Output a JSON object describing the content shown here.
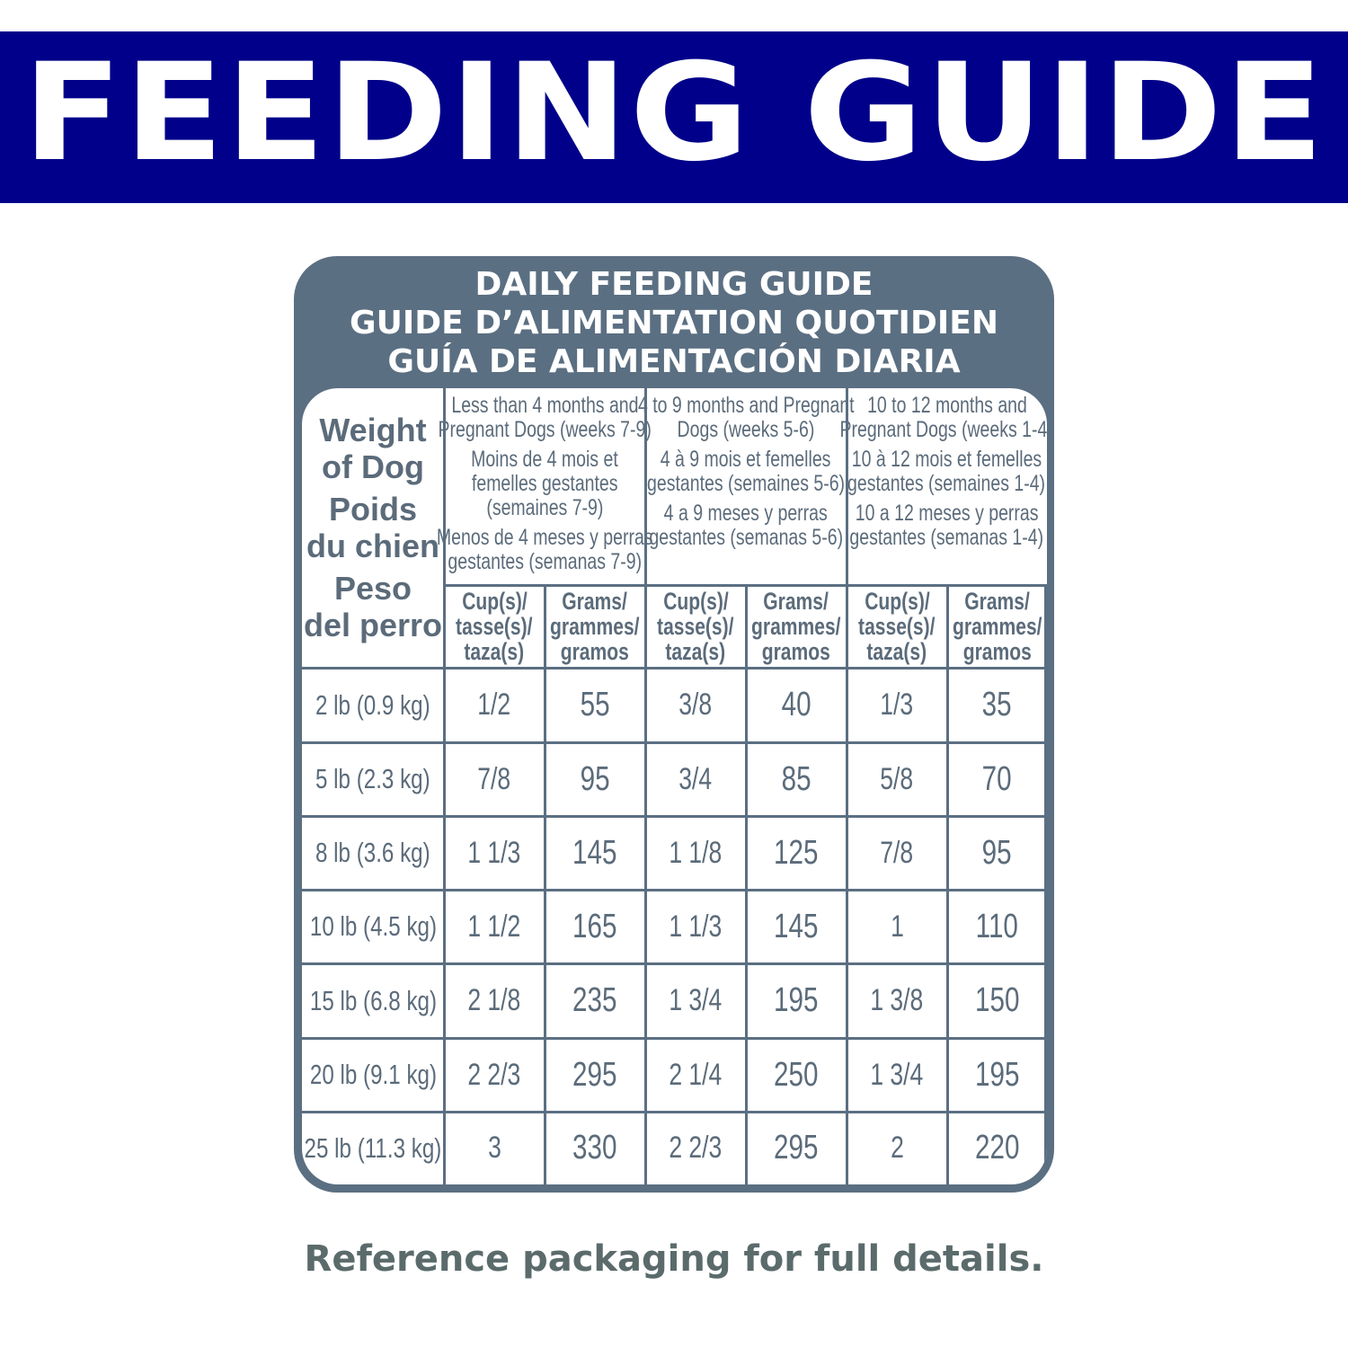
{
  "banner": {
    "title": "FEEDING GUIDE",
    "color": "#00008a"
  },
  "table": {
    "color": "#5b6f82",
    "title_lines": [
      "DAILY FEEDING GUIDE",
      "GUIDE D’ALIMENTATION QUOTIDIEN",
      "GUÍA DE ALIMENTACIÓN DIARIA"
    ],
    "weight_header": [
      "Weight",
      "of Dog",
      "Poids",
      "du chien",
      "Peso",
      "del perro"
    ],
    "age_groups": [
      {
        "en": [
          "Less than 4 months and",
          "Pregnant Dogs (weeks 7-9)"
        ],
        "fr": [
          "Moins de 4 mois et",
          "femelles gestantes",
          "(semaines 7-9)"
        ],
        "es": [
          "Menos de 4 meses y perras",
          "gestantes (semanas 7-9)"
        ]
      },
      {
        "en": [
          "4 to 9 months and Pregnant",
          "Dogs (weeks 5-6)"
        ],
        "fr": [
          "4 à 9 mois et femelles",
          "gestantes (semaines 5-6)"
        ],
        "es": [
          "4 a 9 meses y perras",
          "gestantes (semanas 5-6)"
        ]
      },
      {
        "en": [
          "10 to 12 months and",
          "Pregnant Dogs (weeks 1-4)"
        ],
        "fr": [
          "10 à 12 mois et femelles",
          "gestantes (semaines 1-4)"
        ],
        "es": [
          "10 a 12 meses y perras",
          "gestantes (semanas 1-4)"
        ]
      }
    ],
    "unit_headers": {
      "cups": [
        "Cup(s)/",
        "tasse(s)/",
        "taza(s)"
      ],
      "grams": [
        "Grams/",
        "grammes/",
        "gramos"
      ]
    },
    "rows": [
      {
        "weight": "2 lb (0.9 kg)",
        "values": [
          "1/2",
          "55",
          "3/8",
          "40",
          "1/3",
          "35"
        ]
      },
      {
        "weight": "5 lb (2.3 kg)",
        "values": [
          "7/8",
          "95",
          "3/4",
          "85",
          "5/8",
          "70"
        ]
      },
      {
        "weight": "8 lb (3.6 kg)",
        "values": [
          "1 1/3",
          "145",
          "1 1/8",
          "125",
          "7/8",
          "95"
        ]
      },
      {
        "weight": "10 lb (4.5 kg)",
        "values": [
          "1 1/2",
          "165",
          "1 1/3",
          "145",
          "1",
          "110"
        ]
      },
      {
        "weight": "15 lb (6.8 kg)",
        "values": [
          "2 1/8",
          "235",
          "1 3/4",
          "195",
          "1 3/8",
          "150"
        ]
      },
      {
        "weight": "20 lb (9.1 kg)",
        "values": [
          "2 2/3",
          "295",
          "2 1/4",
          "250",
          "1 3/4",
          "195"
        ]
      },
      {
        "weight": "25 lb (11.3 kg)",
        "values": [
          "3",
          "330",
          "2 2/3",
          "295",
          "2",
          "220"
        ]
      }
    ]
  },
  "footer": {
    "text": "Reference packaging for full details."
  }
}
